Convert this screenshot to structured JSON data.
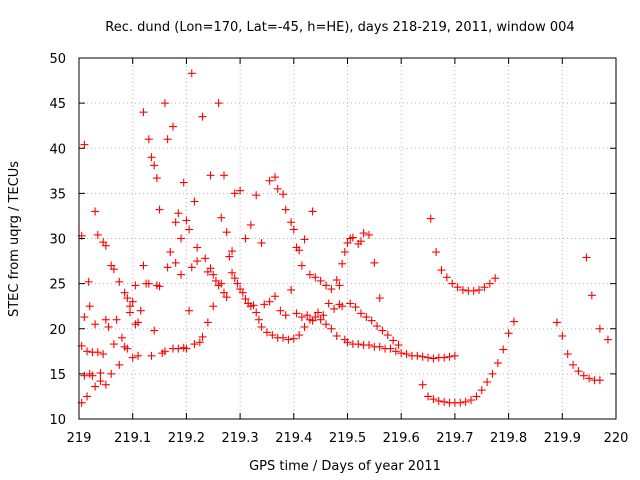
{
  "chart_data": {
    "type": "scatter",
    "title": "Rec. dund (Lon=170, Lat=-45, h=HE), days 218-219, 2011, window 004",
    "xlabel": "GPS time / Days of year 2011",
    "ylabel": "STEC from uqrg / TECUs",
    "xlim": [
      219,
      220
    ],
    "ylim": [
      10,
      50
    ],
    "xticks": [
      219,
      219.1,
      219.2,
      219.3,
      219.4,
      219.5,
      219.6,
      219.7,
      219.8,
      219.9,
      220
    ],
    "xtick_labels": [
      "219",
      "219.1",
      "219.2",
      "219.3",
      "219.4",
      "219.5",
      "219.6",
      "219.7",
      "219.8",
      "219.9",
      "220"
    ],
    "yticks": [
      10,
      15,
      20,
      25,
      30,
      35,
      40,
      45,
      50
    ],
    "ytick_labels": [
      "10",
      "15",
      "20",
      "25",
      "30",
      "35",
      "40",
      "45",
      "50"
    ],
    "grid": true,
    "marker": "+",
    "marker_color": "#ff0000",
    "points": [
      [
        219.005,
        30.3
      ],
      [
        219.01,
        40.4
      ],
      [
        219.018,
        25.2
      ],
      [
        219.02,
        22.5
      ],
      [
        219.03,
        33.0
      ],
      [
        219.035,
        30.4
      ],
      [
        219.045,
        29.6
      ],
      [
        219.05,
        29.2
      ],
      [
        219.06,
        27.0
      ],
      [
        219.065,
        26.6
      ],
      [
        219.075,
        25.2
      ],
      [
        219.085,
        24.0
      ],
      [
        219.09,
        23.4
      ],
      [
        219.095,
        22.5
      ],
      [
        219.1,
        23.0
      ],
      [
        219.105,
        24.8
      ],
      [
        219.11,
        20.7
      ],
      [
        219.12,
        44.0
      ],
      [
        219.13,
        41.0
      ],
      [
        219.135,
        39.0
      ],
      [
        219.14,
        38.1
      ],
      [
        219.145,
        36.7
      ],
      [
        219.15,
        33.2
      ],
      [
        219.16,
        45.0
      ],
      [
        219.165,
        41.0
      ],
      [
        219.175,
        42.4
      ],
      [
        219.18,
        31.8
      ],
      [
        219.185,
        32.8
      ],
      [
        219.19,
        30.0
      ],
      [
        219.195,
        36.2
      ],
      [
        219.2,
        32.0
      ],
      [
        219.205,
        31.0
      ],
      [
        219.21,
        48.3
      ],
      [
        219.215,
        34.1
      ],
      [
        219.22,
        29.0
      ],
      [
        219.23,
        43.5
      ],
      [
        219.24,
        26.3
      ],
      [
        219.245,
        37.0
      ],
      [
        219.25,
        26.0
      ],
      [
        219.26,
        45.0
      ],
      [
        219.265,
        32.3
      ],
      [
        219.27,
        37.0
      ],
      [
        219.275,
        30.7
      ],
      [
        219.285,
        28.6
      ],
      [
        219.29,
        35.0
      ],
      [
        219.3,
        35.3
      ],
      [
        219.31,
        30.0
      ],
      [
        219.32,
        31.5
      ],
      [
        219.33,
        34.8
      ],
      [
        219.34,
        29.5
      ],
      [
        219.355,
        36.4
      ],
      [
        219.365,
        36.8
      ],
      [
        219.37,
        35.5
      ],
      [
        219.38,
        34.9
      ],
      [
        219.385,
        33.2
      ],
      [
        219.395,
        31.8
      ],
      [
        219.4,
        31.0
      ],
      [
        219.405,
        29.0
      ],
      [
        219.41,
        28.7
      ],
      [
        219.415,
        27.0
      ],
      [
        219.42,
        29.9
      ],
      [
        219.43,
        26.0
      ],
      [
        219.435,
        33.0
      ],
      [
        219.44,
        25.7
      ],
      [
        219.45,
        25.3
      ],
      [
        219.46,
        24.8
      ],
      [
        219.47,
        24.4
      ],
      [
        219.48,
        25.4
      ],
      [
        219.485,
        24.8
      ],
      [
        219.49,
        27.2
      ],
      [
        219.495,
        28.5
      ],
      [
        219.5,
        29.5
      ],
      [
        219.505,
        30.0
      ],
      [
        219.51,
        30.1
      ],
      [
        219.52,
        29.4
      ],
      [
        219.525,
        29.7
      ],
      [
        219.53,
        30.6
      ],
      [
        219.54,
        30.4
      ],
      [
        219.55,
        27.3
      ],
      [
        219.56,
        23.4
      ],
      [
        219.005,
        18.1
      ],
      [
        219.01,
        21.3
      ],
      [
        219.015,
        17.5
      ],
      [
        219.02,
        15.0
      ],
      [
        219.025,
        17.4
      ],
      [
        219.03,
        20.5
      ],
      [
        219.035,
        17.4
      ],
      [
        219.04,
        15.1
      ],
      [
        219.045,
        17.2
      ],
      [
        219.05,
        21.0
      ],
      [
        219.055,
        20.2
      ],
      [
        219.06,
        15.0
      ],
      [
        219.065,
        18.3
      ],
      [
        219.07,
        21.0
      ],
      [
        219.075,
        16.0
      ],
      [
        219.08,
        19.0
      ],
      [
        219.085,
        18.0
      ],
      [
        219.09,
        17.8
      ],
      [
        219.095,
        21.8
      ],
      [
        219.1,
        16.8
      ],
      [
        219.105,
        20.5
      ],
      [
        219.11,
        17.0
      ],
      [
        219.115,
        22.0
      ],
      [
        219.12,
        27.0
      ],
      [
        219.125,
        25.0
      ],
      [
        219.13,
        25.0
      ],
      [
        219.135,
        17.0
      ],
      [
        219.14,
        19.8
      ],
      [
        219.145,
        24.8
      ],
      [
        219.15,
        24.7
      ],
      [
        219.155,
        17.3
      ],
      [
        219.16,
        17.5
      ],
      [
        219.165,
        26.8
      ],
      [
        219.17,
        28.5
      ],
      [
        219.175,
        17.8
      ],
      [
        219.18,
        27.3
      ],
      [
        219.185,
        17.8
      ],
      [
        219.19,
        26.0
      ],
      [
        219.195,
        17.9
      ],
      [
        219.2,
        17.8
      ],
      [
        219.205,
        22.0
      ],
      [
        219.21,
        26.8
      ],
      [
        219.215,
        18.3
      ],
      [
        219.22,
        27.5
      ],
      [
        219.225,
        18.5
      ],
      [
        219.23,
        19.1
      ],
      [
        219.235,
        27.8
      ],
      [
        219.24,
        20.7
      ],
      [
        219.245,
        26.7
      ],
      [
        219.25,
        22.5
      ],
      [
        219.255,
        25.3
      ],
      [
        219.26,
        24.8
      ],
      [
        219.265,
        25.0
      ],
      [
        219.27,
        24.0
      ],
      [
        219.275,
        23.5
      ],
      [
        219.28,
        28.0
      ],
      [
        219.285,
        26.2
      ],
      [
        219.29,
        25.6
      ],
      [
        219.295,
        25.0
      ],
      [
        219.3,
        24.4
      ],
      [
        219.305,
        24.0
      ],
      [
        219.31,
        23.3
      ],
      [
        219.315,
        22.8
      ],
      [
        219.32,
        22.5
      ],
      [
        219.325,
        22.6
      ],
      [
        219.33,
        21.8
      ],
      [
        219.335,
        21.0
      ],
      [
        219.34,
        20.2
      ],
      [
        219.345,
        22.7
      ],
      [
        219.35,
        19.6
      ],
      [
        219.355,
        23.0
      ],
      [
        219.36,
        19.3
      ],
      [
        219.365,
        23.6
      ],
      [
        219.37,
        19.0
      ],
      [
        219.375,
        22.0
      ],
      [
        219.38,
        19.0
      ],
      [
        219.385,
        21.5
      ],
      [
        219.39,
        18.8
      ],
      [
        219.395,
        24.3
      ],
      [
        219.4,
        18.9
      ],
      [
        219.405,
        21.7
      ],
      [
        219.41,
        19.3
      ],
      [
        219.415,
        21.3
      ],
      [
        219.42,
        20.2
      ],
      [
        219.425,
        21.5
      ],
      [
        219.43,
        21.0
      ],
      [
        219.435,
        20.9
      ],
      [
        219.44,
        21.3
      ],
      [
        219.445,
        21.8
      ],
      [
        219.45,
        21.0
      ],
      [
        219.455,
        21.5
      ],
      [
        219.46,
        20.5
      ],
      [
        219.465,
        22.8
      ],
      [
        219.47,
        20.0
      ],
      [
        219.475,
        22.2
      ],
      [
        219.48,
        19.2
      ],
      [
        219.485,
        22.7
      ],
      [
        219.49,
        22.5
      ],
      [
        219.495,
        18.8
      ],
      [
        219.5,
        18.5
      ],
      [
        219.505,
        22.8
      ],
      [
        219.51,
        18.3
      ],
      [
        219.515,
        22.4
      ],
      [
        219.52,
        18.3
      ],
      [
        219.525,
        21.7
      ],
      [
        219.53,
        18.2
      ],
      [
        219.535,
        21.3
      ],
      [
        219.54,
        18.2
      ],
      [
        219.545,
        20.9
      ],
      [
        219.55,
        18.0
      ],
      [
        219.555,
        20.3
      ],
      [
        219.56,
        18.0
      ],
      [
        219.565,
        19.8
      ],
      [
        219.57,
        17.8
      ],
      [
        219.575,
        19.3
      ],
      [
        219.58,
        17.8
      ],
      [
        219.585,
        18.7
      ],
      [
        219.59,
        17.5
      ],
      [
        219.595,
        18.2
      ],
      [
        219.6,
        17.3
      ],
      [
        219.61,
        17.2
      ],
      [
        219.62,
        17.0
      ],
      [
        219.63,
        17.0
      ],
      [
        219.64,
        16.9
      ],
      [
        219.65,
        16.8
      ],
      [
        219.66,
        16.7
      ],
      [
        219.67,
        16.8
      ],
      [
        219.68,
        16.8
      ],
      [
        219.69,
        16.9
      ],
      [
        219.7,
        17.0
      ],
      [
        219.655,
        32.2
      ],
      [
        219.665,
        28.5
      ],
      [
        219.675,
        26.5
      ],
      [
        219.685,
        25.7
      ],
      [
        219.695,
        25.0
      ],
      [
        219.705,
        24.6
      ],
      [
        219.715,
        24.3
      ],
      [
        219.725,
        24.2
      ],
      [
        219.735,
        24.2
      ],
      [
        219.745,
        24.3
      ],
      [
        219.755,
        24.6
      ],
      [
        219.765,
        25.0
      ],
      [
        219.775,
        25.6
      ],
      [
        219.64,
        13.8
      ],
      [
        219.65,
        12.5
      ],
      [
        219.66,
        12.2
      ],
      [
        219.67,
        12.0
      ],
      [
        219.68,
        11.9
      ],
      [
        219.69,
        11.8
      ],
      [
        219.7,
        11.8
      ],
      [
        219.71,
        11.8
      ],
      [
        219.72,
        11.9
      ],
      [
        219.73,
        12.1
      ],
      [
        219.74,
        12.5
      ],
      [
        219.75,
        13.2
      ],
      [
        219.76,
        14.1
      ],
      [
        219.77,
        15.0
      ],
      [
        219.78,
        16.2
      ],
      [
        219.79,
        17.7
      ],
      [
        219.8,
        19.5
      ],
      [
        219.81,
        20.8
      ],
      [
        219.89,
        20.7
      ],
      [
        219.9,
        19.2
      ],
      [
        219.91,
        17.2
      ],
      [
        219.92,
        16.0
      ],
      [
        219.93,
        15.3
      ],
      [
        219.94,
        14.8
      ],
      [
        219.95,
        14.5
      ],
      [
        219.96,
        14.3
      ],
      [
        219.97,
        14.3
      ],
      [
        219.945,
        27.9
      ],
      [
        219.955,
        23.7
      ],
      [
        219.97,
        20.0
      ],
      [
        219.985,
        18.8
      ],
      [
        219.005,
        11.8
      ],
      [
        219.01,
        14.8
      ],
      [
        219.015,
        12.5
      ],
      [
        219.025,
        14.8
      ],
      [
        219.03,
        13.6
      ],
      [
        219.04,
        14.2
      ],
      [
        219.05,
        13.8
      ]
    ]
  }
}
